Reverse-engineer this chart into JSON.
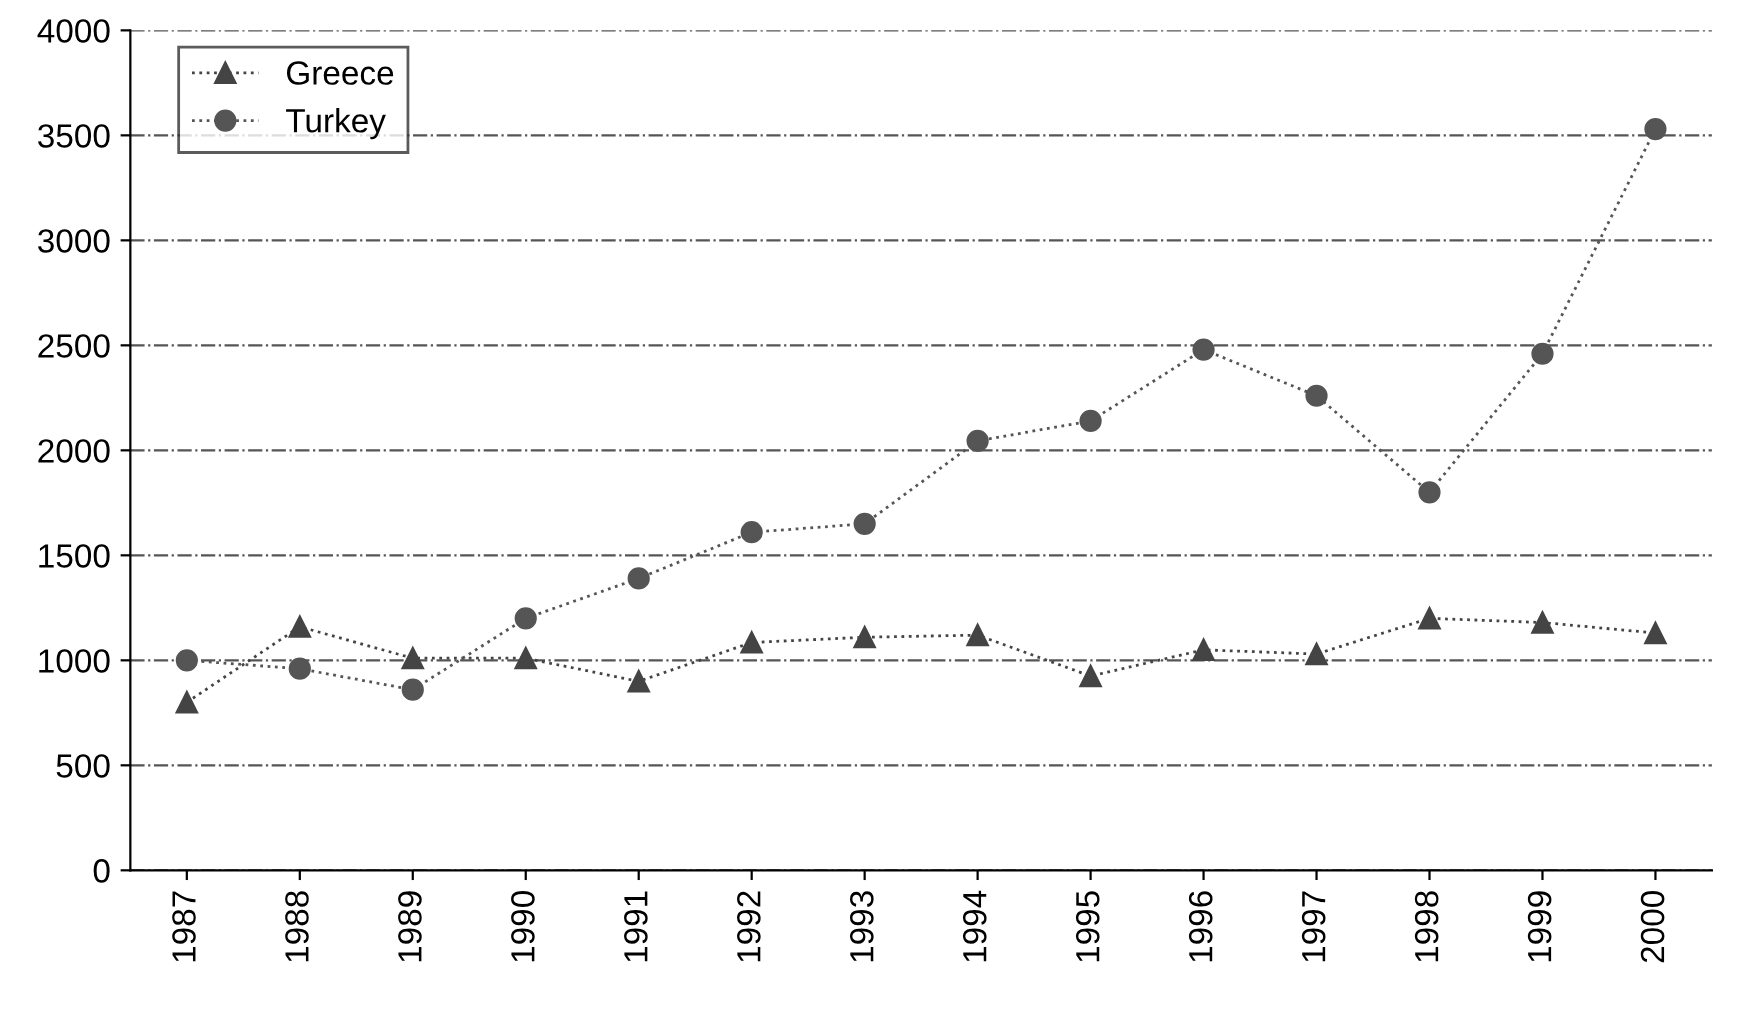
{
  "chart_data": {
    "type": "line",
    "categories": [
      "1987",
      "1988",
      "1989",
      "1990",
      "1991",
      "1992",
      "1993",
      "1994",
      "1995",
      "1996",
      "1997",
      "1998",
      "1999",
      "2000"
    ],
    "series": [
      {
        "name": "Greece",
        "color": "#444444",
        "marker": "triangle",
        "values": [
          800,
          1160,
          1010,
          1010,
          900,
          1085,
          1110,
          1120,
          925,
          1050,
          1030,
          1200,
          1180,
          1130
        ]
      },
      {
        "name": "Turkey",
        "color": "#555555",
        "marker": "circle",
        "values": [
          1000,
          960,
          860,
          1200,
          1390,
          1610,
          1650,
          2045,
          2140,
          2480,
          2260,
          1800,
          2460,
          3530
        ]
      }
    ],
    "ylim": [
      0,
      4000
    ],
    "yticks": [
      0,
      500,
      1000,
      1500,
      2000,
      2500,
      3000,
      3500,
      4000
    ],
    "grid": "y",
    "legend": "top left",
    "line_style": "dotted"
  }
}
